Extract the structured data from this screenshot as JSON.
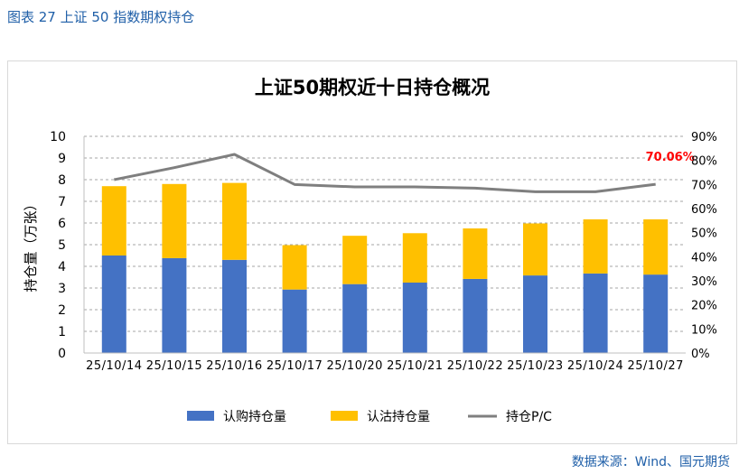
{
  "figure": {
    "label": "图表 27  上证 50 指数期权持仓",
    "source": "数据来源：Wind、国元期货"
  },
  "chart_data": {
    "type": "bar",
    "title": "上证50期权近十日持仓概况",
    "ylabel": "持仓量（万张）",
    "categories": [
      "25/10/14",
      "25/10/15",
      "25/10/16",
      "25/10/17",
      "25/10/20",
      "25/10/21",
      "25/10/22",
      "25/10/23",
      "25/10/24",
      "25/10/27"
    ],
    "series": [
      {
        "name": "认购持仓量",
        "kind": "bar-stack",
        "color": "#4472c4",
        "values": [
          4.5,
          4.38,
          4.3,
          2.93,
          3.18,
          3.25,
          3.42,
          3.58,
          3.67,
          3.62
        ]
      },
      {
        "name": "认沽持仓量",
        "kind": "bar-stack",
        "color": "#ffc000",
        "values": [
          3.2,
          3.42,
          3.55,
          2.05,
          2.23,
          2.28,
          2.33,
          2.4,
          2.5,
          2.55
        ]
      },
      {
        "name": "持仓P/C",
        "kind": "line",
        "axis": "right",
        "color": "#7f7f7f",
        "values": [
          0.72,
          0.77,
          0.825,
          0.7,
          0.69,
          0.69,
          0.685,
          0.67,
          0.67,
          0.7006
        ]
      }
    ],
    "ylim": [
      0,
      10
    ],
    "yticks": [
      "0",
      "1",
      "2",
      "3",
      "4",
      "5",
      "6",
      "7",
      "8",
      "9",
      "10"
    ],
    "y2lim": [
      0,
      0.9
    ],
    "y2ticks": [
      "0%",
      "10%",
      "20%",
      "30%",
      "40%",
      "50%",
      "60%",
      "70%",
      "80%",
      "90%"
    ],
    "annotation": {
      "text": "70.06%",
      "index": 9,
      "color": "#ff0000"
    },
    "grid": true,
    "legend_position": "bottom"
  }
}
